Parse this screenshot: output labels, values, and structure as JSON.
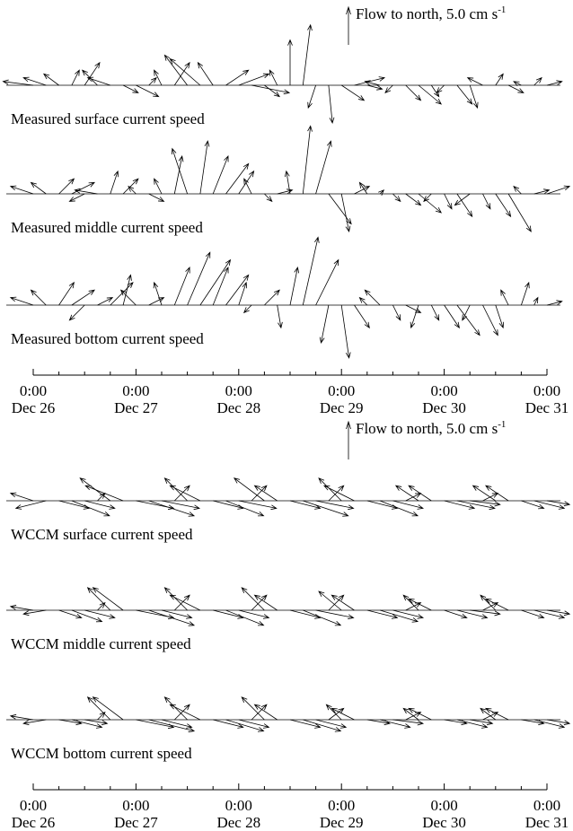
{
  "chart_data": [
    {
      "type": "stick",
      "xlim": [
        0,
        120
      ],
      "scale_value": 5.0,
      "scale_label": "Flow to north, 5.0 cm s",
      "scale_superscript": "-1",
      "color": "#000000",
      "xticks": [
        {
          "value": 0,
          "label": "0:00"
        },
        {
          "value": 24,
          "label": "0:00"
        },
        {
          "value": 48,
          "label": "0:00"
        },
        {
          "value": 72,
          "label": "0:00"
        },
        {
          "value": 96,
          "label": "0:00"
        },
        {
          "value": 120,
          "label": "0:00"
        }
      ],
      "xtick_dates": [
        "Dec 26",
        "Dec 27",
        "Dec 28",
        "Dec 29",
        "Dec 30",
        "Dec 31"
      ],
      "xminorticks": [
        6,
        12,
        18,
        30,
        36,
        42,
        54,
        60,
        66,
        78,
        84,
        90,
        102,
        108,
        114
      ],
      "x": [
        0,
        3,
        6,
        9,
        12,
        15,
        18,
        21,
        24,
        27,
        30,
        33,
        36,
        39,
        42,
        45,
        48,
        51,
        54,
        57,
        60,
        63,
        66,
        69,
        72,
        75,
        78,
        81,
        84,
        87,
        90,
        93,
        96,
        99,
        102,
        105,
        108,
        111,
        114,
        117,
        120
      ],
      "series": [
        {
          "name": "Measured surface current speed",
          "u": [
            -4,
            -3,
            -2,
            1,
            2,
            -2,
            -3,
            2,
            3,
            1,
            -1,
            2,
            -3,
            -4,
            -2,
            3,
            4,
            5,
            2,
            -1,
            0,
            1,
            -1,
            0.5,
            3,
            4,
            2,
            -2,
            -1,
            2,
            3,
            1,
            -1,
            2,
            1,
            -2,
            1,
            2,
            -1,
            1,
            2
          ],
          "values": [
            0.5,
            1,
            1.5,
            2,
            3,
            2,
            1,
            -1,
            -1.5,
            1,
            2,
            3,
            4,
            3.5,
            3,
            2,
            1.5,
            -1,
            -1.5,
            2,
            6,
            8,
            -3,
            -5,
            -2,
            1,
            -0.5,
            0.5,
            -1,
            -2,
            -2.5,
            -1.5,
            -1,
            -2.5,
            -3,
            1,
            1.5,
            -1,
            0.5,
            1,
            0.5
          ]
        },
        {
          "name": "Measured middle current speed",
          "u": [
            -3,
            -2,
            2,
            3,
            -2,
            -3,
            1,
            2,
            -1,
            2,
            -1,
            1,
            -2,
            1,
            2,
            3,
            2,
            -1,
            1,
            2,
            -0.5,
            1,
            2,
            3,
            1,
            2,
            -1,
            0.5,
            1,
            2,
            3,
            -1,
            1,
            2,
            -2,
            1,
            2,
            3,
            -1,
            2,
            3
          ],
          "values": [
            1,
            1.5,
            2,
            1.5,
            -1,
            0.5,
            3,
            2,
            1,
            -1,
            2,
            5,
            6,
            7,
            5,
            4,
            3,
            2,
            -1,
            0.5,
            3,
            9,
            7,
            -4,
            -5,
            1,
            1.5,
            0.5,
            -1,
            -1.5,
            -2.5,
            -1,
            -2,
            -3,
            -1.5,
            -2,
            -3,
            -5,
            1,
            0.5,
            1
          ]
        },
        {
          "name": "Measured bottom current speed",
          "u": [
            -3,
            -2,
            2,
            3,
            -2,
            2,
            3,
            1,
            -2,
            2,
            -1,
            2,
            3,
            4,
            2,
            3,
            1,
            -1,
            2,
            0.5,
            1,
            2,
            3,
            -1,
            1,
            2,
            -1,
            -2,
            1,
            2,
            -1,
            1,
            2,
            3,
            -1,
            2,
            1,
            -1,
            1,
            0.5,
            2
          ],
          "values": [
            1,
            2,
            3,
            2,
            -2,
            1,
            3,
            4,
            2,
            1,
            3,
            5,
            7,
            6,
            5,
            4,
            3,
            -1,
            2,
            -3,
            5,
            9,
            6,
            -5,
            -7,
            -3,
            1,
            2,
            -2,
            -1,
            -3,
            -2,
            -3,
            -4,
            -2,
            -4,
            -3,
            2,
            3,
            1,
            0.5
          ]
        }
      ]
    },
    {
      "type": "stick",
      "xlim": [
        0,
        120
      ],
      "scale_value": 5.0,
      "scale_label": "Flow to north, 5.0 cm s",
      "scale_superscript": "-1",
      "color": "#000000",
      "xticks": [
        {
          "value": 0,
          "label": "0:00"
        },
        {
          "value": 24,
          "label": "0:00"
        },
        {
          "value": 48,
          "label": "0:00"
        },
        {
          "value": 72,
          "label": "0:00"
        },
        {
          "value": 96,
          "label": "0:00"
        },
        {
          "value": 120,
          "label": "0:00"
        }
      ],
      "xtick_dates": [
        "Dec 26",
        "Dec 27",
        "Dec 28",
        "Dec 29",
        "Dec 30",
        "Dec 31"
      ],
      "xminorticks": [
        6,
        12,
        18,
        30,
        36,
        42,
        54,
        60,
        66,
        78,
        84,
        90,
        102,
        108,
        114
      ],
      "x": [
        0,
        3,
        6,
        9,
        12,
        15,
        18,
        21,
        24,
        27,
        30,
        33,
        36,
        39,
        42,
        45,
        48,
        51,
        54,
        57,
        60,
        63,
        66,
        69,
        72,
        75,
        78,
        81,
        84,
        87,
        90,
        93,
        96,
        99,
        102,
        105,
        108,
        111,
        114,
        117,
        120
      ],
      "series": [
        {
          "name": "WCCM surface current speed",
          "u": [
            -3,
            -4,
            4,
            5,
            4,
            1,
            -4,
            -5,
            5,
            6,
            5,
            2,
            -3,
            -4,
            4,
            5,
            5,
            2,
            -4,
            -3,
            4,
            6,
            5,
            2,
            -3,
            -4,
            4,
            5,
            4,
            2,
            -3,
            -3,
            4,
            5,
            4,
            2,
            -3,
            -3,
            3,
            4,
            3
          ],
          "values": [
            1,
            -1,
            -1,
            -2,
            -1,
            1,
            3,
            2,
            -1,
            -2,
            -1,
            2,
            3,
            2,
            -1,
            -2,
            -1,
            2,
            3,
            2,
            -1,
            -2,
            -1,
            2,
            3,
            2,
            -1,
            -2,
            -1,
            1,
            2,
            2,
            -1,
            -1,
            -0.5,
            1,
            2,
            2,
            -1,
            -1,
            -0.5
          ]
        },
        {
          "name": "WCCM middle current speed",
          "u": [
            -3,
            -3,
            3,
            4,
            4,
            1,
            -3,
            -4,
            5,
            6,
            4,
            2,
            -3,
            -4,
            4,
            5,
            4,
            2,
            -3,
            -3,
            4,
            5,
            5,
            2,
            -3,
            -3,
            4,
            5,
            4,
            2,
            -2,
            -3,
            3,
            4,
            4,
            2,
            -2,
            -3,
            3,
            4,
            3
          ],
          "values": [
            0.5,
            -0.5,
            -1,
            -1.5,
            -1,
            1,
            3,
            3,
            -1,
            -2,
            -1,
            2,
            3,
            2,
            -1,
            -2,
            -1,
            2,
            3,
            2,
            -1,
            -2,
            -1,
            2,
            2.5,
            2,
            -1,
            -1.5,
            -1,
            1,
            2,
            1.5,
            -1,
            -1,
            -0.5,
            1,
            2,
            1.5,
            -1,
            -1,
            -0.5
          ]
        },
        {
          "name": "WCCM bottom current speed",
          "u": [
            -3,
            -3,
            3,
            4,
            3,
            1,
            -3,
            -4,
            5,
            6,
            4,
            2,
            -3,
            -4,
            4,
            5,
            4,
            2,
            -3,
            -3,
            4,
            5,
            4,
            2,
            -2,
            -3,
            3,
            4,
            4,
            2,
            -2,
            -3,
            3,
            4,
            3,
            2,
            -2,
            -3,
            3,
            4,
            3
          ],
          "values": [
            0.5,
            -0.5,
            -0.5,
            -1,
            -0.5,
            1,
            3,
            3,
            -1,
            -1.5,
            -1,
            2,
            3,
            2,
            -1,
            -1.5,
            -1,
            2,
            3,
            2,
            -1,
            -1.5,
            -1,
            1.5,
            2,
            1.5,
            -0.5,
            -1,
            -0.5,
            1,
            1.5,
            1.5,
            -0.5,
            -1,
            -0.5,
            1,
            1.5,
            1.5,
            -0.5,
            -1,
            -0.5
          ]
        }
      ]
    }
  ]
}
